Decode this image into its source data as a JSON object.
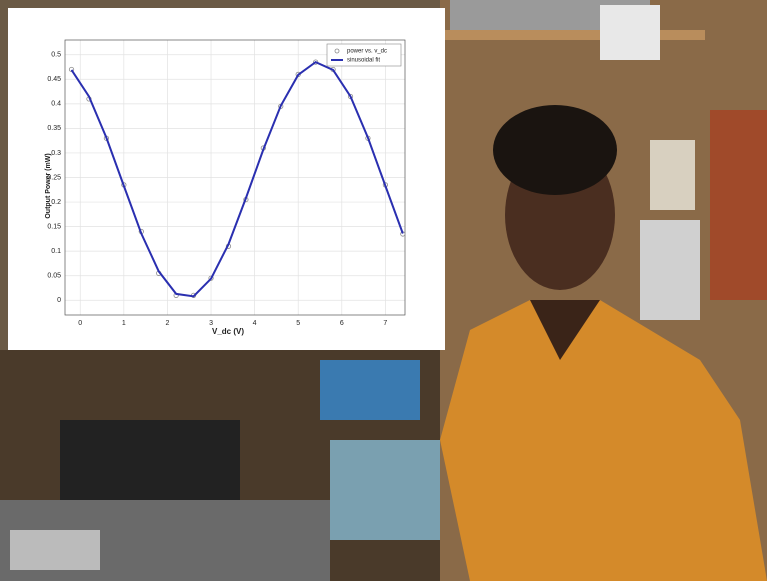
{
  "chart_data": {
    "type": "scatter-fit",
    "x_label": "V_dc (V)",
    "y_label": "Output Power (mW)",
    "x": [
      -0.2,
      0.2,
      0.6,
      1.0,
      1.4,
      1.8,
      2.2,
      2.6,
      3.0,
      3.4,
      3.8,
      4.2,
      4.6,
      5.0,
      5.4,
      5.8,
      6.2,
      6.6,
      7.0,
      7.4
    ],
    "series": [
      {
        "name": "power vs. v_dc",
        "color": "#8a8a8a",
        "marker": "circle",
        "values": [
          0.47,
          0.41,
          0.33,
          0.235,
          0.14,
          0.055,
          0.01,
          0.01,
          0.045,
          0.11,
          0.205,
          0.31,
          0.395,
          0.46,
          0.485,
          0.47,
          0.415,
          0.33,
          0.235,
          0.135
        ]
      },
      {
        "name": "sinusoidal fit",
        "color": "#2a2fb0",
        "marker": "line",
        "values": [
          0.469,
          0.415,
          0.331,
          0.233,
          0.136,
          0.059,
          0.013,
          0.008,
          0.044,
          0.114,
          0.208,
          0.307,
          0.396,
          0.459,
          0.485,
          0.469,
          0.415,
          0.331,
          0.233,
          0.136
        ]
      }
    ],
    "xlim": [
      -0.35,
      7.45
    ],
    "xticks": [
      0,
      1,
      2,
      3,
      4,
      5,
      6,
      7
    ],
    "ylim": [
      -0.03,
      0.53
    ],
    "yticks": [
      0,
      0.05,
      0.1,
      0.15,
      0.2,
      0.25,
      0.3,
      0.35,
      0.4,
      0.45,
      0.5
    ],
    "grid": true,
    "legend": "top-right"
  }
}
